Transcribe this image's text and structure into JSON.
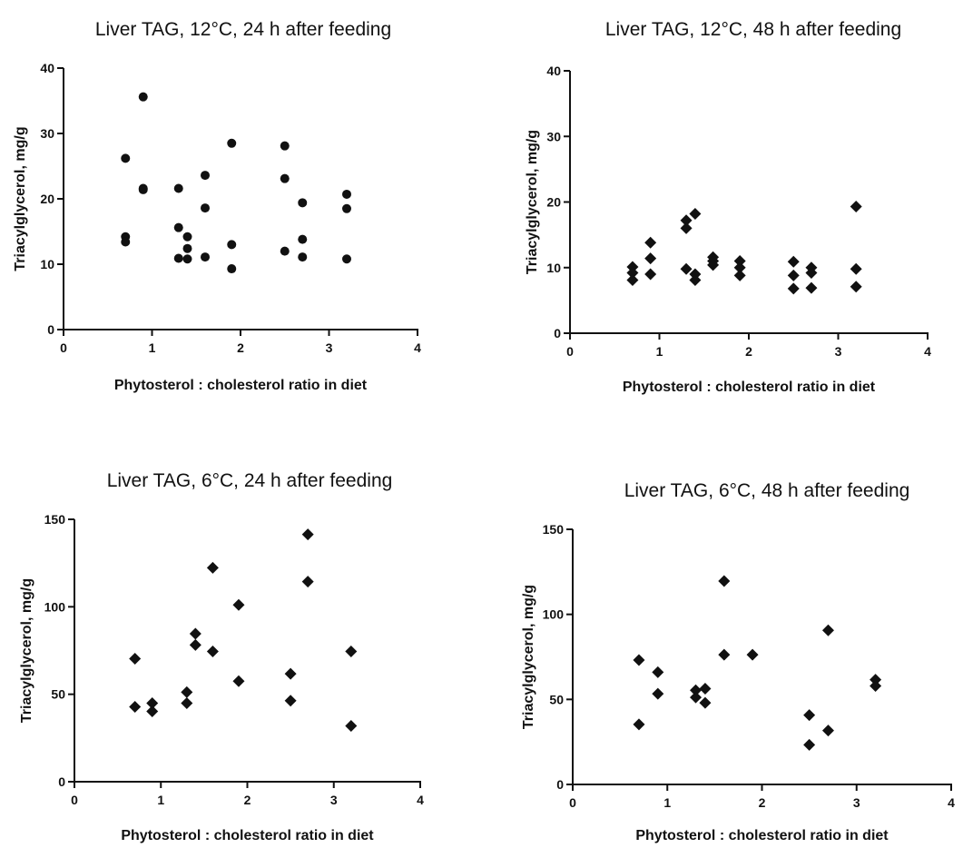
{
  "chart_data": [
    {
      "type": "scatter",
      "title": "Liver TAG, 12°C, 24 h after feeding",
      "xlabel": "Phytosterol : cholesterol ratio in diet",
      "ylabel": "Triacylglycerol, mg/g",
      "xlim": [
        0,
        4
      ],
      "ylim": [
        0,
        40
      ],
      "xticks": [
        "0",
        "1",
        "2",
        "3",
        "4"
      ],
      "yticks": [
        "0",
        "10",
        "20",
        "30",
        "40"
      ],
      "marker": "circle",
      "grid": false,
      "points": [
        {
          "x": 0.7,
          "y": 26.2
        },
        {
          "x": 0.7,
          "y": 14.2
        },
        {
          "x": 0.7,
          "y": 13.4
        },
        {
          "x": 0.9,
          "y": 35.6
        },
        {
          "x": 0.9,
          "y": 21.6
        },
        {
          "x": 0.9,
          "y": 21.4
        },
        {
          "x": 1.3,
          "y": 21.6
        },
        {
          "x": 1.3,
          "y": 15.6
        },
        {
          "x": 1.3,
          "y": 10.9
        },
        {
          "x": 1.4,
          "y": 14.2
        },
        {
          "x": 1.4,
          "y": 12.4
        },
        {
          "x": 1.4,
          "y": 10.8
        },
        {
          "x": 1.6,
          "y": 23.6
        },
        {
          "x": 1.6,
          "y": 18.6
        },
        {
          "x": 1.6,
          "y": 11.1
        },
        {
          "x": 1.9,
          "y": 28.5
        },
        {
          "x": 1.9,
          "y": 13.0
        },
        {
          "x": 1.9,
          "y": 9.3
        },
        {
          "x": 2.5,
          "y": 28.1
        },
        {
          "x": 2.5,
          "y": 23.1
        },
        {
          "x": 2.5,
          "y": 12.0
        },
        {
          "x": 2.7,
          "y": 19.4
        },
        {
          "x": 2.7,
          "y": 13.8
        },
        {
          "x": 2.7,
          "y": 11.1
        },
        {
          "x": 3.2,
          "y": 20.7
        },
        {
          "x": 3.2,
          "y": 18.5
        },
        {
          "x": 3.2,
          "y": 10.8
        }
      ]
    },
    {
      "type": "scatter",
      "title": "Liver TAG, 12°C, 48 h after feeding",
      "xlabel": "Phytosterol : cholesterol ratio in diet",
      "ylabel": "Triacylglycerol, mg/g",
      "xlim": [
        0,
        4
      ],
      "ylim": [
        0,
        40
      ],
      "xticks": [
        "0",
        "1",
        "2",
        "3",
        "4"
      ],
      "yticks": [
        "0",
        "10",
        "20",
        "30",
        "40"
      ],
      "marker": "diamond",
      "grid": false,
      "points": [
        {
          "x": 0.7,
          "y": 10.1
        },
        {
          "x": 0.7,
          "y": 9.2
        },
        {
          "x": 0.7,
          "y": 8.1
        },
        {
          "x": 0.9,
          "y": 13.8
        },
        {
          "x": 0.9,
          "y": 11.4
        },
        {
          "x": 0.9,
          "y": 9.0
        },
        {
          "x": 1.3,
          "y": 17.2
        },
        {
          "x": 1.3,
          "y": 16.0
        },
        {
          "x": 1.3,
          "y": 9.8
        },
        {
          "x": 1.4,
          "y": 18.2
        },
        {
          "x": 1.4,
          "y": 9.0
        },
        {
          "x": 1.4,
          "y": 8.1
        },
        {
          "x": 1.6,
          "y": 11.6
        },
        {
          "x": 1.6,
          "y": 11.0
        },
        {
          "x": 1.6,
          "y": 10.4
        },
        {
          "x": 1.9,
          "y": 11.0
        },
        {
          "x": 1.9,
          "y": 10.0
        },
        {
          "x": 1.9,
          "y": 8.8
        },
        {
          "x": 2.5,
          "y": 10.9
        },
        {
          "x": 2.5,
          "y": 8.8
        },
        {
          "x": 2.5,
          "y": 6.8
        },
        {
          "x": 2.7,
          "y": 10.0
        },
        {
          "x": 2.7,
          "y": 9.2
        },
        {
          "x": 2.7,
          "y": 6.9
        },
        {
          "x": 3.2,
          "y": 19.3
        },
        {
          "x": 3.2,
          "y": 9.8
        },
        {
          "x": 3.2,
          "y": 7.1
        }
      ]
    },
    {
      "type": "scatter",
      "title": "Liver TAG, 6°C, 24 h after feeding",
      "xlabel": "Phytosterol : cholesterol ratio in diet",
      "ylabel": "Triacylglycerol, mg/g",
      "xlim": [
        0,
        4
      ],
      "ylim": [
        0,
        150
      ],
      "xticks": [
        "0",
        "1",
        "2",
        "3",
        "4"
      ],
      "yticks": [
        "0",
        "50",
        "100",
        "150"
      ],
      "marker": "diamond",
      "grid": false,
      "points": [
        {
          "x": 0.7,
          "y": 70.3
        },
        {
          "x": 0.7,
          "y": 42.8
        },
        {
          "x": 0.9,
          "y": 44.9
        },
        {
          "x": 0.9,
          "y": 40.2
        },
        {
          "x": 1.3,
          "y": 51.2
        },
        {
          "x": 1.3,
          "y": 44.9
        },
        {
          "x": 1.4,
          "y": 84.6
        },
        {
          "x": 1.4,
          "y": 78.2
        },
        {
          "x": 1.6,
          "y": 122.3
        },
        {
          "x": 1.6,
          "y": 74.5
        },
        {
          "x": 1.9,
          "y": 101.1
        },
        {
          "x": 1.9,
          "y": 57.5
        },
        {
          "x": 2.5,
          "y": 61.7
        },
        {
          "x": 2.5,
          "y": 46.3
        },
        {
          "x": 2.7,
          "y": 141.4
        },
        {
          "x": 2.7,
          "y": 114.4
        },
        {
          "x": 3.2,
          "y": 74.5
        },
        {
          "x": 3.2,
          "y": 31.9
        }
      ]
    },
    {
      "type": "scatter",
      "title": "Liver TAG, 6°C, 48 h after feeding",
      "xlabel": "Phytosterol : cholesterol ratio in diet",
      "ylabel": "Triacylglycerol, mg/g",
      "xlim": [
        0,
        4
      ],
      "ylim": [
        0,
        150
      ],
      "xticks": [
        "0",
        "1",
        "2",
        "3",
        "4"
      ],
      "yticks": [
        "0",
        "50",
        "100",
        "150"
      ],
      "marker": "diamond",
      "grid": false,
      "points": [
        {
          "x": 0.7,
          "y": 73.1
        },
        {
          "x": 0.7,
          "y": 35.3
        },
        {
          "x": 0.9,
          "y": 66.0
        },
        {
          "x": 0.9,
          "y": 53.3
        },
        {
          "x": 1.3,
          "y": 55.4
        },
        {
          "x": 1.3,
          "y": 51.2
        },
        {
          "x": 1.4,
          "y": 56.3
        },
        {
          "x": 1.4,
          "y": 48.0
        },
        {
          "x": 1.6,
          "y": 119.6
        },
        {
          "x": 1.6,
          "y": 76.3
        },
        {
          "x": 1.9,
          "y": 76.3
        },
        {
          "x": 2.5,
          "y": 40.8
        },
        {
          "x": 2.5,
          "y": 23.3
        },
        {
          "x": 2.7,
          "y": 90.6
        },
        {
          "x": 2.7,
          "y": 31.7
        },
        {
          "x": 3.2,
          "y": 61.6
        },
        {
          "x": 3.2,
          "y": 57.9
        }
      ]
    }
  ]
}
